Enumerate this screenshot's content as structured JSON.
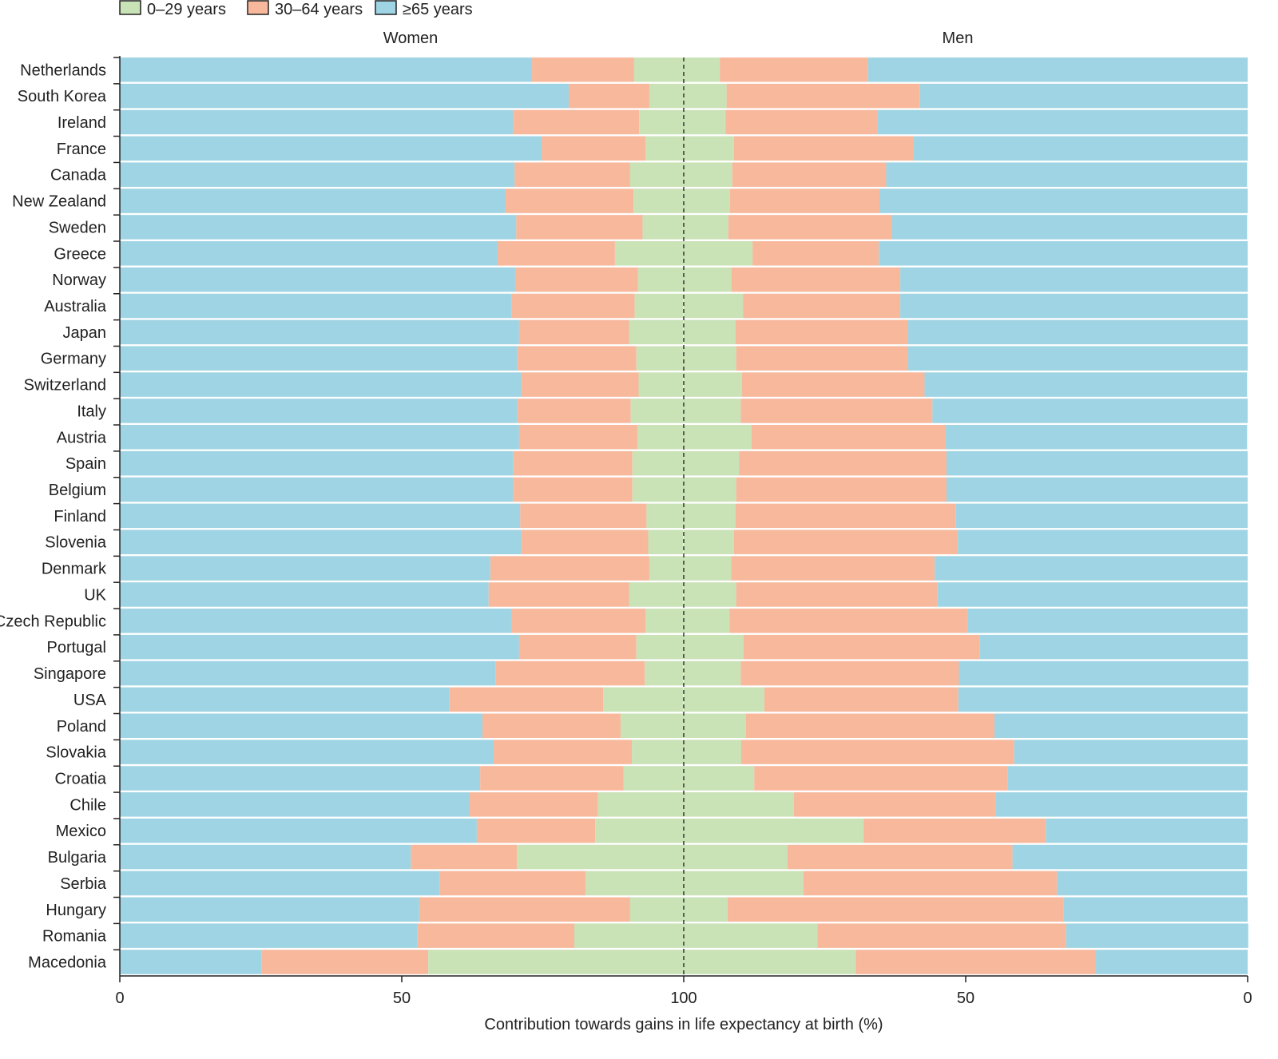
{
  "chart_data": {
    "type": "bar",
    "subtype": "diverging-stacked-percent",
    "xlabel": "Contribution towards gains in life expectancy at birth (%)",
    "panels": [
      "Women",
      "Men"
    ],
    "x_ticks": [
      "0",
      "50",
      "100",
      "50",
      "0"
    ],
    "xlim": [
      0,
      100
    ],
    "legend": [
      {
        "name": "0–29 years",
        "color": "#c9e2b6"
      },
      {
        "name": "30–64 years",
        "color": "#f8b89c"
      },
      {
        "name": "≥65 years",
        "color": "#9ed4e3"
      }
    ],
    "legend_position": "top-left",
    "categories": [
      "Netherlands",
      "South Korea",
      "Ireland",
      "France",
      "Canada",
      "New Zealand",
      "Sweden",
      "Greece",
      "Norway",
      "Australia",
      "Japan",
      "Germany",
      "Switzerland",
      "Italy",
      "Austria",
      "Spain",
      "Belgium",
      "Finland",
      "Slovenia",
      "Denmark",
      "UK",
      "Czech Republic",
      "Portugal",
      "Singapore",
      "USA",
      "Poland",
      "Slovakia",
      "Croatia",
      "Chile",
      "Mexico",
      "Bulgaria",
      "Serbia",
      "Hungary",
      "Romania",
      "Macedonia"
    ],
    "series": {
      "Women": [
        {
          "name": "0–29 years",
          "values": [
            8.8,
            6.1,
            7.9,
            6.8,
            9.5,
            8.9,
            7.4,
            12.2,
            8.1,
            8.6,
            9.6,
            8.4,
            7.9,
            9.4,
            8.2,
            9.1,
            9.1,
            6.7,
            6.2,
            6.1,
            9.6,
            6.8,
            8.4,
            6.8,
            14.2,
            11.2,
            9.2,
            10.8,
            15.2,
            15.7,
            29.6,
            17.4,
            9.5,
            19.4,
            45.3
          ]
        },
        {
          "name": "30–64 years",
          "values": [
            18.1,
            14.3,
            22.4,
            18.4,
            20.5,
            22.7,
            22.4,
            20.8,
            21.8,
            21.8,
            19.5,
            21.1,
            20.8,
            20.1,
            21.0,
            21.1,
            21.2,
            22.4,
            22.5,
            28.2,
            24.9,
            23.8,
            20.8,
            26.5,
            27.3,
            24.5,
            24.5,
            25.4,
            22.9,
            21.0,
            18.8,
            25.9,
            37.4,
            27.8,
            29.6
          ]
        },
        {
          "name": "≥65 years",
          "values": [
            73.1,
            79.6,
            69.7,
            74.8,
            70.0,
            68.4,
            70.3,
            67.0,
            70.1,
            69.5,
            70.8,
            70.5,
            71.2,
            70.5,
            70.8,
            69.8,
            69.7,
            71.0,
            71.2,
            65.7,
            65.4,
            69.4,
            70.8,
            66.6,
            58.4,
            64.3,
            66.3,
            63.9,
            61.9,
            63.3,
            51.6,
            56.7,
            53.1,
            52.8,
            25.1
          ]
        }
      ],
      "Men": [
        {
          "name": "0–29 years",
          "values": [
            6.4,
            7.6,
            7.4,
            8.9,
            8.6,
            8.2,
            7.9,
            12.2,
            8.5,
            10.5,
            9.2,
            9.3,
            10.3,
            10.1,
            12.0,
            9.8,
            9.3,
            9.2,
            8.9,
            8.4,
            9.3,
            8.1,
            10.6,
            10.1,
            14.3,
            11.0,
            10.2,
            12.5,
            19.5,
            31.9,
            18.4,
            21.2,
            7.8,
            23.7,
            30.5
          ]
        },
        {
          "name": "30–64 years",
          "values": [
            26.3,
            34.3,
            26.9,
            31.9,
            27.3,
            26.5,
            29.0,
            22.4,
            29.9,
            27.9,
            30.6,
            30.5,
            32.4,
            34.0,
            34.4,
            36.8,
            37.3,
            39.0,
            39.7,
            36.1,
            35.7,
            42.2,
            41.9,
            38.7,
            34.4,
            44.1,
            48.4,
            44.9,
            35.8,
            32.3,
            39.9,
            45.0,
            59.5,
            44.1,
            42.6
          ]
        },
        {
          "name": "≥65 years",
          "values": [
            67.3,
            58.1,
            65.7,
            59.2,
            64.0,
            65.3,
            63.0,
            65.4,
            61.6,
            61.6,
            60.2,
            60.2,
            57.2,
            55.9,
            53.5,
            53.4,
            53.4,
            51.8,
            51.4,
            55.5,
            55.0,
            49.7,
            47.5,
            51.3,
            51.3,
            44.9,
            41.4,
            42.6,
            44.6,
            35.8,
            41.6,
            33.7,
            32.7,
            32.3,
            26.9
          ]
        }
      ]
    }
  }
}
